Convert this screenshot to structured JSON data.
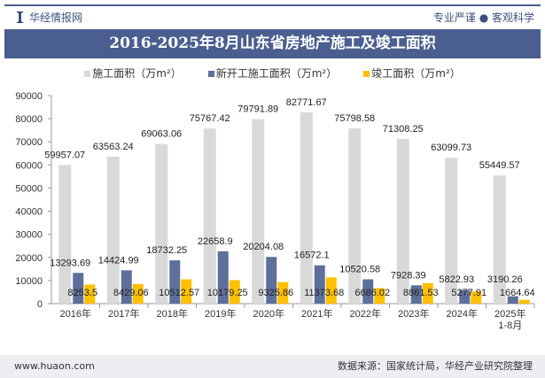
{
  "header": {
    "brand": "华经情报网",
    "motto": "专业严谨 ● 客观科学"
  },
  "footer": {
    "website": "www.huaon.com",
    "source": "数据来源：国家统计局，华经产业研究院整理"
  },
  "colors": {
    "construction": "#d9d9d9",
    "new": "#5d6f9a",
    "completed": "#ffc000"
  },
  "chart_data": {
    "type": "bar",
    "title": "2016-2025年8月山东省房地产施工及竣工面积",
    "categories": [
      "2016年",
      "2017年",
      "2018年",
      "2019年",
      "2020年",
      "2021年",
      "2022年",
      "2023年",
      "2024年",
      "2025年\n1-8月"
    ],
    "series": [
      {
        "name": "施工面积（万m²）",
        "values": [
          59957.07,
          63563.24,
          69063.06,
          75767.42,
          79791.89,
          82771.67,
          75798.58,
          71308.25,
          63099.73,
          55449.57
        ]
      },
      {
        "name": "新开工施工面积（万m²）",
        "values": [
          13293.69,
          14424.99,
          18732.25,
          22658.9,
          20204.08,
          16572.1,
          10520.58,
          7928.39,
          5822.93,
          3190.26
        ]
      },
      {
        "name": "竣工面积（万m²）",
        "values": [
          8253.5,
          8429.06,
          10512.57,
          10179.25,
          9325.86,
          11373.68,
          6686.02,
          8861.53,
          5277.91,
          1664.64
        ]
      }
    ],
    "yticks": [
      "0",
      "10000",
      "20000",
      "30000",
      "40000",
      "50000",
      "60000",
      "70000",
      "80000",
      "90000"
    ],
    "ylim": [
      0,
      90000
    ],
    "legend": "top"
  }
}
